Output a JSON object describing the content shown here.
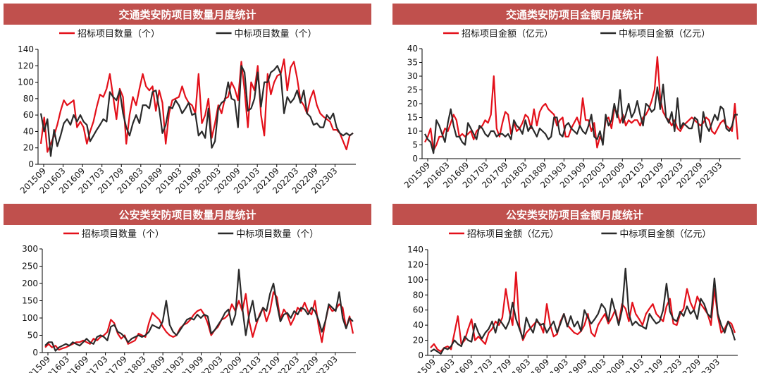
{
  "chart_data": [
    {
      "type": "line",
      "title": "交通类安防项目数量月度统计",
      "ylim": [
        0,
        140
      ],
      "yticks": [
        0,
        20,
        40,
        60,
        80,
        100,
        120,
        140
      ],
      "x_tick_labels": [
        "201509",
        "201603",
        "201609",
        "201703",
        "201709",
        "201803",
        "201809",
        "201903",
        "201909",
        "202003",
        "202009",
        "202103",
        "202109",
        "202203",
        "202209",
        "202303"
      ],
      "series": [
        {
          "name": "招标项目数量（个）",
          "color": "#e3101a",
          "values": [
            25,
            57,
            15,
            25,
            35,
            48,
            65,
            78,
            72,
            75,
            78,
            45,
            52,
            45,
            25,
            40,
            52,
            70,
            85,
            82,
            92,
            110,
            82,
            55,
            92,
            82,
            25,
            60,
            82,
            72,
            92,
            110,
            95,
            90,
            95,
            65,
            90,
            75,
            25,
            62,
            78,
            80,
            82,
            95,
            82,
            75,
            72,
            62,
            110,
            50,
            60,
            80,
            32,
            50,
            72,
            62,
            80,
            82,
            100,
            92,
            78,
            125,
            90,
            45,
            100,
            90,
            120,
            60,
            35,
            110,
            85,
            100,
            108,
            110,
            128,
            90,
            118,
            125,
            105,
            78,
            72,
            62,
            80,
            90,
            72,
            62,
            58,
            55,
            52,
            42,
            42,
            38,
            28,
            18,
            35,
            38
          ]
        },
        {
          "name": "中标项目数量（个）",
          "color": "#2a2a2a",
          "values": [
            62,
            40,
            55,
            10,
            42,
            22,
            35,
            50,
            55,
            48,
            60,
            52,
            60,
            52,
            48,
            28,
            35,
            42,
            48,
            55,
            52,
            88,
            82,
            78,
            90,
            62,
            45,
            35,
            50,
            60,
            50,
            72,
            72,
            68,
            88,
            90,
            68,
            38,
            48,
            70,
            68,
            78,
            72,
            62,
            68,
            75,
            60,
            62,
            35,
            40,
            32,
            68,
            20,
            28,
            68,
            75,
            78,
            100,
            80,
            78,
            45,
            120,
            112,
            65,
            68,
            80,
            112,
            70,
            100,
            100,
            112,
            115,
            120,
            110,
            62,
            82,
            75,
            80,
            90,
            75,
            90,
            62,
            58,
            48,
            50,
            45,
            45,
            60,
            55,
            62,
            45,
            38,
            35,
            38,
            35,
            38
          ]
        }
      ]
    },
    {
      "type": "line",
      "title": "交通类安防项目金额月度统计",
      "ylim": [
        0,
        40
      ],
      "yticks": [
        0,
        5,
        10,
        15,
        20,
        25,
        30,
        35,
        40
      ],
      "x_tick_labels": [
        "201509",
        "201603",
        "201609",
        "201703",
        "201709",
        "201803",
        "201809",
        "201903",
        "201909",
        "202003",
        "202009",
        "202103",
        "202109",
        "202203",
        "202209",
        "202303"
      ],
      "series": [
        {
          "name": "招标项目金额（亿元）",
          "color": "#e3101a",
          "values": [
            6,
            8,
            11,
            3,
            5,
            8,
            8,
            11,
            10,
            13,
            16,
            14,
            8,
            9,
            8,
            9,
            10,
            7,
            10,
            11,
            12,
            14,
            13,
            16,
            30,
            11,
            8,
            13,
            17,
            16,
            9,
            13,
            10,
            11,
            13,
            16,
            15,
            11,
            18,
            12,
            17,
            19,
            20,
            18,
            17,
            16,
            12,
            14,
            15,
            8,
            8,
            11,
            13,
            15,
            12,
            22,
            14,
            14,
            10,
            13,
            4,
            8,
            6,
            14,
            15,
            11,
            18,
            17,
            13,
            16,
            12,
            14,
            13,
            14,
            14,
            12,
            15,
            16,
            18,
            21,
            25,
            37,
            22,
            17,
            15,
            14,
            12,
            14,
            11,
            10,
            12,
            13,
            14,
            15,
            14,
            13,
            12,
            13,
            15,
            14,
            10,
            9,
            11,
            13,
            14,
            12,
            11,
            10,
            20,
            7
          ]
        },
        {
          "name": "中标项目金额（亿元）",
          "color": "#2a2a2a",
          "values": [
            9,
            7,
            6,
            2,
            14,
            12,
            9,
            6,
            13,
            18,
            12,
            8,
            8,
            6,
            5,
            13,
            11,
            9,
            7,
            12,
            11,
            9,
            8,
            10,
            10,
            8,
            9,
            9,
            8,
            9,
            7,
            14,
            12,
            11,
            9,
            14,
            10,
            12,
            10,
            8,
            11,
            10,
            9,
            7,
            8,
            15,
            15,
            9,
            8,
            12,
            13,
            11,
            10,
            9,
            12,
            10,
            9,
            12,
            16,
            8,
            7,
            10,
            5,
            16,
            12,
            14,
            20,
            15,
            25,
            13,
            16,
            20,
            15,
            17,
            21,
            16,
            12,
            20,
            19,
            17,
            18,
            26,
            18,
            27,
            15,
            13,
            17,
            10,
            22,
            11,
            13,
            12,
            11,
            11,
            15,
            14,
            6,
            17,
            12,
            10,
            13,
            16,
            14,
            19,
            18,
            11,
            10,
            12,
            16,
            16
          ]
        }
      ]
    },
    {
      "type": "line",
      "title": "公安类安防项目数量月度统计",
      "ylim": [
        0,
        300
      ],
      "yticks": [
        0,
        50,
        100,
        150,
        200,
        250,
        300
      ],
      "x_tick_labels": [
        "201509",
        "201603",
        "201609",
        "201703",
        "201709",
        "201803",
        "201809",
        "201903",
        "201909",
        "202003",
        "202009",
        "202103",
        "202109",
        "202203",
        "202209",
        "202303"
      ],
      "series": [
        {
          "name": "招标项目数量（个）",
          "color": "#e3101a",
          "values": [
            15,
            25,
            15,
            20,
            8,
            12,
            15,
            20,
            25,
            30,
            30,
            35,
            30,
            25,
            40,
            35,
            45,
            50,
            60,
            95,
            85,
            55,
            40,
            50,
            25,
            30,
            35,
            55,
            50,
            45,
            85,
            115,
            105,
            95,
            75,
            60,
            50,
            45,
            50,
            70,
            80,
            85,
            95,
            110,
            120,
            125,
            110,
            85,
            50,
            65,
            75,
            95,
            100,
            110,
            140,
            120,
            150,
            120,
            170,
            90,
            45,
            80,
            110,
            130,
            90,
            120,
            175,
            160,
            95,
            125,
            110,
            80,
            100,
            130,
            120,
            145,
            120,
            110,
            150,
            80,
            30,
            90,
            135,
            120,
            125,
            140,
            130,
            70,
            105,
            55
          ]
        },
        {
          "name": "中标项目数量（个）",
          "color": "#2a2a2a",
          "values": [
            20,
            30,
            30,
            5,
            15,
            20,
            25,
            20,
            30,
            25,
            20,
            30,
            40,
            30,
            25,
            45,
            50,
            45,
            35,
            75,
            80,
            60,
            55,
            45,
            30,
            40,
            45,
            50,
            45,
            50,
            60,
            80,
            75,
            70,
            90,
            150,
            80,
            60,
            50,
            65,
            80,
            95,
            100,
            95,
            110,
            100,
            110,
            105,
            55,
            65,
            80,
            95,
            115,
            125,
            80,
            110,
            240,
            130,
            50,
            110,
            150,
            90,
            105,
            130,
            120,
            170,
            200,
            140,
            90,
            110,
            115,
            100,
            120,
            110,
            130,
            125,
            110,
            130,
            120,
            95,
            60,
            90,
            140,
            130,
            120,
            175,
            100,
            70,
            100,
            90
          ]
        }
      ]
    },
    {
      "type": "line",
      "title": "公安类安防项目金额月度统计",
      "ylim": [
        0,
        140
      ],
      "yticks": [
        0,
        20,
        40,
        60,
        80,
        100,
        120,
        140
      ],
      "x_tick_labels": [
        "201509",
        "201603",
        "201609",
        "201703",
        "201709",
        "201803",
        "201809",
        "201903",
        "201909",
        "202003",
        "202009",
        "202103",
        "202109",
        "202203",
        "202209",
        "202303"
      ],
      "series": [
        {
          "name": "招标项目金额（亿元）",
          "color": "#e3101a",
          "values": [
            10,
            15,
            8,
            5,
            10,
            12,
            8,
            30,
            52,
            15,
            20,
            35,
            48,
            20,
            25,
            20,
            15,
            30,
            35,
            45,
            40,
            50,
            88,
            60,
            40,
            110,
            38,
            20,
            30,
            35,
            40,
            45,
            42,
            30,
            68,
            40,
            25,
            28,
            45,
            55,
            40,
            35,
            30,
            28,
            32,
            40,
            55,
            30,
            25,
            40,
            48,
            55,
            42,
            50,
            60,
            42,
            68,
            62,
            45,
            70,
            55,
            48,
            40,
            55,
            62,
            68,
            55,
            50,
            45,
            65,
            75,
            42,
            40,
            55,
            62,
            88,
            70,
            60,
            78,
            68,
            62,
            55,
            40,
            88,
            52,
            30,
            35,
            45,
            42,
            30
          ]
        },
        {
          "name": "中标项目金额（亿元）",
          "color": "#2a2a2a",
          "values": [
            5,
            8,
            5,
            2,
            10,
            8,
            12,
            20,
            15,
            12,
            25,
            20,
            18,
            42,
            30,
            22,
            30,
            35,
            45,
            30,
            48,
            42,
            35,
            45,
            70,
            48,
            35,
            22,
            50,
            38,
            30,
            48,
            40,
            42,
            30,
            38,
            45,
            30,
            42,
            55,
            38,
            52,
            38,
            45,
            32,
            60,
            50,
            42,
            48,
            55,
            68,
            62,
            45,
            75,
            58,
            40,
            60,
            115,
            55,
            40,
            45,
            40,
            38,
            35,
            55,
            48,
            42,
            45,
            60,
            95,
            58,
            48,
            45,
            58,
            52,
            65,
            55,
            60,
            48,
            75,
            68,
            55,
            50,
            102,
            55,
            40,
            30,
            45,
            35,
            20
          ]
        }
      ]
    }
  ]
}
